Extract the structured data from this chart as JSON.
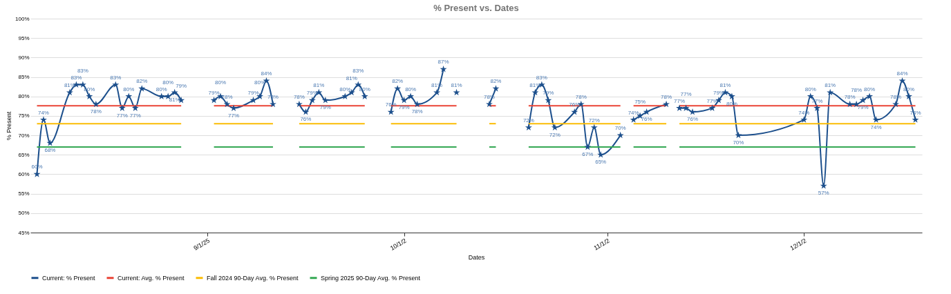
{
  "chart_data": {
    "type": "line",
    "title": "% Present vs. Dates",
    "xlabel": "Dates",
    "ylabel": "% Present",
    "x": [
      "2025-08-06",
      "2025-08-07",
      "2025-08-08",
      "2025-08-11",
      "2025-08-12",
      "2025-08-13",
      "2025-08-14",
      "2025-08-15",
      "2025-08-18",
      "2025-08-19",
      "2025-08-20",
      "2025-08-21",
      "2025-08-22",
      "2025-08-25",
      "2025-08-26",
      "2025-08-27",
      "2025-08-28",
      "2025-08-29",
      "2025-09-01",
      "2025-09-02",
      "2025-09-03",
      "2025-09-04",
      "2025-09-05",
      "2025-09-08",
      "2025-09-09",
      "2025-09-10",
      "2025-09-11",
      "2025-09-12",
      "2025-09-15",
      "2025-09-16",
      "2025-09-17",
      "2025-09-18",
      "2025-09-19",
      "2025-09-22",
      "2025-09-23",
      "2025-09-24",
      "2025-09-25",
      "2025-09-26",
      "2025-09-29",
      "2025-09-30",
      "2025-10-01",
      "2025-10-02",
      "2025-10-03",
      "2025-10-06",
      "2025-10-07",
      "2025-10-08",
      "2025-10-09",
      "2025-10-10",
      "2025-10-13",
      "2025-10-14",
      "2025-10-15",
      "2025-10-16",
      "2025-10-17",
      "2025-10-20",
      "2025-10-21",
      "2025-10-22",
      "2025-10-23",
      "2025-10-24",
      "2025-10-27",
      "2025-10-28",
      "2025-10-29",
      "2025-10-30",
      "2025-10-31",
      "2025-11-03",
      "2025-11-04",
      "2025-11-05",
      "2025-11-06",
      "2025-11-07",
      "2025-11-10",
      "2025-11-11",
      "2025-11-12",
      "2025-11-13",
      "2025-11-14",
      "2025-11-17",
      "2025-11-18",
      "2025-11-19",
      "2025-11-20",
      "2025-11-21",
      "2025-12-01",
      "2025-12-02",
      "2025-12-03",
      "2025-12-04",
      "2025-12-05",
      "2025-12-08",
      "2025-12-09",
      "2025-12-10",
      "2025-12-11",
      "2025-12-12",
      "2025-12-15",
      "2025-12-16",
      "2025-12-17",
      "2025-12-18"
    ],
    "series": [
      {
        "name": "Current: % Present",
        "color": "#1c4f8c",
        "marker": "star",
        "values": [
          60,
          74,
          68,
          81,
          83,
          83,
          80,
          78,
          83,
          77,
          80,
          77,
          82,
          80,
          80,
          81,
          79,
          null,
          null,
          79,
          80,
          78,
          77,
          79,
          80,
          84,
          78,
          null,
          78,
          76,
          79,
          81,
          79,
          80,
          81,
          83,
          80,
          null,
          76,
          82,
          79,
          80,
          78,
          81,
          87,
          null,
          81,
          null,
          null,
          78,
          82,
          null,
          null,
          72,
          81,
          83,
          79,
          72,
          76,
          78,
          67,
          72,
          65,
          70,
          null,
          74,
          75,
          76,
          78,
          null,
          77,
          77,
          76,
          77,
          79,
          81,
          80,
          70,
          74,
          80,
          77,
          57,
          81,
          78,
          78,
          79,
          80,
          74,
          78,
          84,
          80,
          74
        ],
        "value_labels": [
          "60%",
          "74%",
          "68%",
          "81%",
          "83%",
          "83%",
          "80%",
          "78%",
          "83%",
          "77%",
          "80%",
          "77%",
          "82%",
          "80%",
          "80%",
          "81%",
          "79%",
          null,
          null,
          "79%",
          "80%",
          "78%",
          "77%",
          "79%",
          "80%",
          "84%",
          "78%",
          null,
          "78%",
          "76%",
          "79%",
          "81%",
          "79%",
          "80%",
          "81%",
          "83%",
          "80%",
          null,
          "76%",
          "82%",
          "79%",
          "80%",
          "78%",
          "81%",
          "87%",
          null,
          "81%",
          null,
          null,
          "78%",
          "82%",
          null,
          null,
          "72%",
          "81%",
          "83%",
          "79%",
          "72%",
          "76%",
          "78%",
          "67%",
          "72%",
          "65%",
          "70%",
          null,
          "74%",
          "75%",
          "76%",
          "78%",
          null,
          "77%",
          "77%",
          "76%",
          "77%",
          "79%",
          "81%",
          "80%",
          "70%",
          "74%",
          "80%",
          "77%",
          "57%",
          "81%",
          "78%",
          "78%",
          "79%",
          "80%",
          "74%",
          "78%",
          "84%",
          "80%",
          "74%"
        ]
      },
      {
        "name": "Current: Avg. % Present",
        "color": "#ea4335",
        "marker": "none",
        "values": [
          77.6,
          77.6,
          77.6,
          77.6,
          77.6,
          77.6,
          77.6,
          77.6,
          77.6,
          77.6,
          77.6,
          77.6,
          77.6,
          77.6,
          77.6,
          77.6,
          77.6,
          null,
          null,
          77.6,
          77.6,
          77.6,
          77.6,
          77.6,
          77.6,
          77.6,
          77.6,
          null,
          77.6,
          77.6,
          77.6,
          77.6,
          77.6,
          77.6,
          77.6,
          77.6,
          77.6,
          null,
          77.6,
          77.6,
          77.6,
          77.6,
          77.6,
          77.6,
          77.6,
          77.6,
          77.6,
          null,
          null,
          77.6,
          77.6,
          null,
          null,
          77.6,
          77.6,
          77.6,
          77.6,
          77.6,
          77.6,
          77.6,
          77.6,
          77.6,
          77.6,
          77.6,
          null,
          77.6,
          77.6,
          77.6,
          77.6,
          null,
          77.6,
          77.6,
          77.6,
          77.6,
          77.6,
          77.6,
          77.6,
          77.6,
          77.6,
          77.6,
          77.6,
          77.6,
          77.6,
          77.6,
          77.6,
          77.6,
          77.6,
          77.6,
          77.6,
          77.6,
          77.6,
          77.6
        ]
      },
      {
        "name": "Fall 2024 90-Day Avg. % Present",
        "color": "#fbbc04",
        "marker": "none",
        "values": [
          73,
          73,
          73,
          73,
          73,
          73,
          73,
          73,
          73,
          73,
          73,
          73,
          73,
          73,
          73,
          73,
          73,
          null,
          null,
          73,
          73,
          73,
          73,
          73,
          73,
          73,
          73,
          null,
          73,
          73,
          73,
          73,
          73,
          73,
          73,
          73,
          73,
          null,
          73,
          73,
          73,
          73,
          73,
          73,
          73,
          73,
          73,
          null,
          null,
          73,
          73,
          null,
          null,
          73,
          73,
          73,
          73,
          73,
          73,
          73,
          73,
          73,
          73,
          73,
          null,
          73,
          73,
          73,
          73,
          null,
          73,
          73,
          73,
          73,
          73,
          73,
          73,
          73,
          73,
          73,
          73,
          73,
          73,
          73,
          73,
          73,
          73,
          73,
          73,
          73,
          73,
          73
        ]
      },
      {
        "name": "Spring 2025 90-Day Avg. % Present",
        "color": "#34a853",
        "marker": "none",
        "values": [
          67,
          67,
          67,
          67,
          67,
          67,
          67,
          67,
          67,
          67,
          67,
          67,
          67,
          67,
          67,
          67,
          67,
          null,
          null,
          67,
          67,
          67,
          67,
          67,
          67,
          67,
          67,
          null,
          67,
          67,
          67,
          67,
          67,
          67,
          67,
          67,
          67,
          null,
          67,
          67,
          67,
          67,
          67,
          67,
          67,
          67,
          67,
          null,
          null,
          67,
          67,
          null,
          null,
          67,
          67,
          67,
          67,
          67,
          67,
          67,
          67,
          67,
          67,
          67,
          null,
          67,
          67,
          67,
          67,
          null,
          67,
          67,
          67,
          67,
          67,
          67,
          67,
          67,
          67,
          67,
          67,
          67,
          67,
          67,
          67,
          67,
          67,
          67,
          67,
          67,
          67,
          67
        ]
      }
    ],
    "xlim": [
      "2025-08-05",
      "2025-12-19"
    ],
    "xticks": [
      {
        "value": "2025-09-01",
        "label": "9/1/25"
      },
      {
        "value": "2025-10-01",
        "label": "10/1/2"
      },
      {
        "value": "2025-11-01",
        "label": "11/1/2"
      },
      {
        "value": "2025-12-01",
        "label": "12/1/2"
      }
    ],
    "ylim": [
      45,
      100
    ],
    "yticks": [
      {
        "value": 45,
        "label": "45%"
      },
      {
        "value": 50,
        "label": "50%"
      },
      {
        "value": 55,
        "label": "55%"
      },
      {
        "value": 60,
        "label": "60%"
      },
      {
        "value": 65,
        "label": "65%"
      },
      {
        "value": 70,
        "label": "70%"
      },
      {
        "value": 75,
        "label": "75%"
      },
      {
        "value": 80,
        "label": "80%"
      },
      {
        "value": 85,
        "label": "85%"
      },
      {
        "value": 90,
        "label": "90%"
      },
      {
        "value": 95,
        "label": "95%"
      },
      {
        "value": 100,
        "label": "100%"
      }
    ],
    "grid": "y",
    "legend": "bottom",
    "line_style": "solid"
  }
}
